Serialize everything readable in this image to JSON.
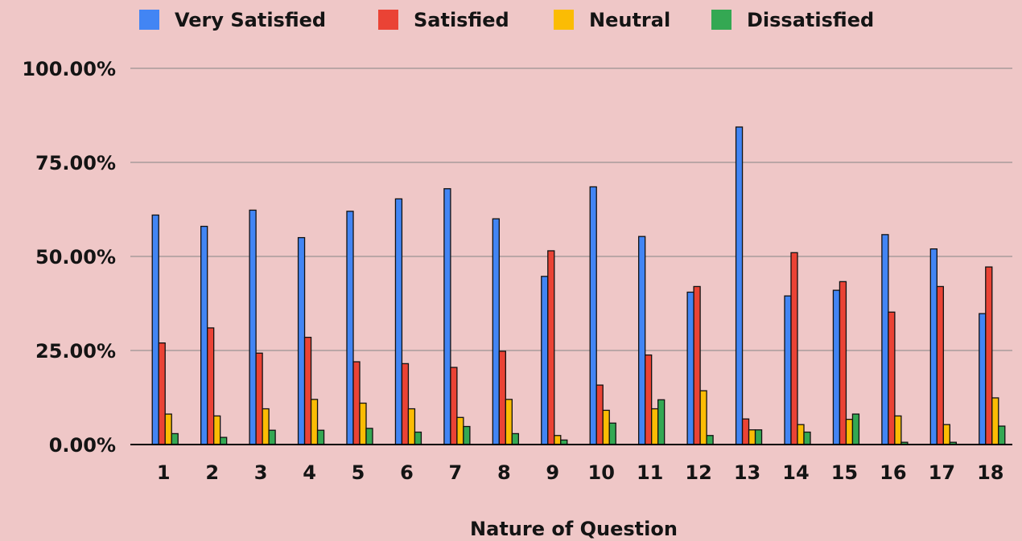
{
  "chart_data": {
    "type": "bar",
    "xlabel": "Nature of Question",
    "ylabel": "",
    "ylim": [
      0,
      100
    ],
    "y_ticks": [
      "0.00%",
      "25.00%",
      "50.00%",
      "75.00%",
      "100.00%"
    ],
    "grid": true,
    "legend_position": "top",
    "categories": [
      "1",
      "2",
      "3",
      "4",
      "5",
      "6",
      "7",
      "8",
      "9",
      "10",
      "11",
      "12",
      "13",
      "14",
      "15",
      "16",
      "17",
      "18"
    ],
    "series": [
      {
        "name": "Very Satisfied",
        "color": "#4285f4",
        "values": [
          61,
          58,
          62.3,
          55,
          62,
          65.3,
          68,
          60,
          44.7,
          68.5,
          55.3,
          40.5,
          84.4,
          39.5,
          41,
          55.8,
          52,
          34.8
        ]
      },
      {
        "name": "Satisfied",
        "color": "#ea4335",
        "values": [
          27,
          31,
          24.3,
          28.5,
          22,
          21.5,
          20.5,
          24.8,
          51.5,
          15.8,
          23.8,
          42,
          6.8,
          51,
          43.3,
          35.2,
          42,
          47.2
        ]
      },
      {
        "name": "Neutral",
        "color": "#fbbc04",
        "values": [
          8.1,
          7.6,
          9.5,
          12,
          11,
          9.5,
          7.2,
          12,
          2.4,
          9.1,
          9.5,
          14.3,
          3.9,
          5.3,
          6.7,
          7.6,
          5.3,
          12.4
        ]
      },
      {
        "name": "Dissatisfied",
        "color": "#34a853",
        "values": [
          2.9,
          1.9,
          3.8,
          3.8,
          4.3,
          3.3,
          4.8,
          2.9,
          1.2,
          5.7,
          11.9,
          2.4,
          3.9,
          3.3,
          8.1,
          0.6,
          0.6,
          4.9
        ]
      }
    ]
  }
}
